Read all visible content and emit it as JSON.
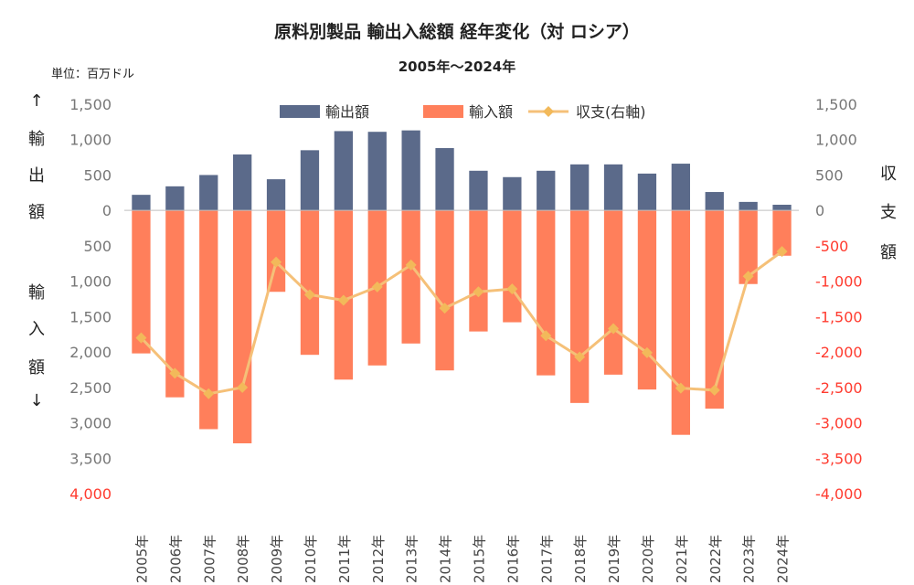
{
  "chart_data": {
    "type": "bar+line",
    "title": "原料別製品 輸出入総額 経年変化（対 ロシア）",
    "subtitle": "2005年～2024年",
    "unit_label": "単位：百万ドル",
    "left_axis_top_label": [
      "↑",
      "輸",
      "出",
      "額"
    ],
    "left_axis_bottom_label": [
      "輸",
      "入",
      "額",
      "↓"
    ],
    "right_axis_label": [
      "収",
      "支",
      "額"
    ],
    "categories": [
      "2005年",
      "2006年",
      "2007年",
      "2008年",
      "2009年",
      "2010年",
      "2011年",
      "2012年",
      "2013年",
      "2014年",
      "2015年",
      "2016年",
      "2017年",
      "2018年",
      "2019年",
      "2020年",
      "2021年",
      "2022年",
      "2023年",
      "2024年"
    ],
    "series": [
      {
        "name": "輸出額",
        "axis": "left",
        "type": "bar",
        "values": [
          220,
          340,
          500,
          790,
          440,
          850,
          1120,
          1110,
          1130,
          880,
          560,
          470,
          560,
          650,
          650,
          520,
          660,
          260,
          120,
          80
        ]
      },
      {
        "name": "輸入額",
        "axis": "left",
        "type": "bar",
        "values": [
          -2020,
          -2640,
          -3090,
          -3290,
          -1150,
          -2040,
          -2390,
          -2190,
          -1880,
          -2260,
          -1710,
          -1580,
          -2330,
          -2720,
          -2320,
          -2530,
          -3170,
          -2800,
          -1040,
          -640
        ]
      },
      {
        "name": "収支(右軸)",
        "axis": "right",
        "type": "line",
        "values": [
          -1800,
          -2300,
          -2590,
          -2500,
          -730,
          -1190,
          -1270,
          -1080,
          -770,
          -1380,
          -1150,
          -1110,
          -1770,
          -2070,
          -1670,
          -2010,
          -2510,
          -2540,
          -930,
          -580
        ]
      }
    ],
    "left_axis": {
      "ylim": [
        -4000,
        1500
      ],
      "ticks": [
        1500,
        1000,
        500,
        0,
        -500,
        -1000,
        -1500,
        -2000,
        -2500,
        -3000,
        -3500,
        -4000
      ],
      "tick_labels": [
        "1,500",
        "1,000",
        "500",
        "0",
        "500",
        "1,000",
        "1,500",
        "2,000",
        "2,500",
        "3,000",
        "3,500",
        "4,000"
      ]
    },
    "right_axis": {
      "ylim": [
        -4000,
        1500
      ],
      "ticks": [
        1500,
        1000,
        500,
        0,
        -500,
        -1000,
        -1500,
        -2000,
        -2500,
        -3000,
        -3500,
        -4000
      ],
      "tick_labels": [
        "1,500",
        "1,000",
        "500",
        "0",
        "-500",
        "-1,000",
        "-1,500",
        "-2,000",
        "-2,500",
        "-3,000",
        "-3,500",
        "-4,000"
      ]
    },
    "grid": false,
    "legend_position": "top",
    "colors": {
      "export": "#5b6a8a",
      "import": "#ff7f5b",
      "balance": "#f5c078",
      "balance_marker": "#f2b95a",
      "neg_tick": "#ff3b2f",
      "axis_text": "#777777"
    }
  }
}
